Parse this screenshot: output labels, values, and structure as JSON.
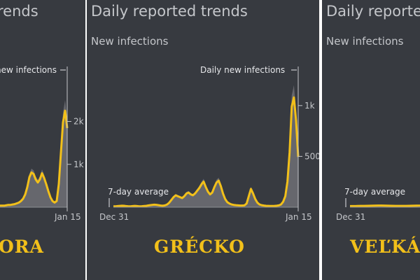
{
  "panels": [
    {
      "title": "rends",
      "subtitle": "",
      "country": "ORA",
      "daily_label": "new infections"
    },
    {
      "title": "Daily reported trends",
      "subtitle": "New infections",
      "country": "GRÉCKO",
      "daily_label": "Daily new infections"
    },
    {
      "title": "Daily reporte",
      "subtitle": "New infections",
      "country": "VEĽKÁ",
      "daily_label": ""
    }
  ],
  "colors": {
    "background": "#373a40",
    "accent": "#f2c01a",
    "area": "#6e7075",
    "text": "#c4c6ca"
  },
  "chart_data": [
    {
      "type": "area",
      "title": "rends",
      "x_labels": [
        "Jan 15"
      ],
      "y_ticks": [
        {
          "value": 1000,
          "label": "1k"
        },
        {
          "value": 2000,
          "label": "2k"
        }
      ],
      "ylim": [
        0,
        3200
      ],
      "annotations": [
        "new infections"
      ],
      "series": [
        {
          "name": "new infections",
          "values": [
            80,
            60,
            50,
            40,
            40,
            40,
            40,
            50,
            60,
            60,
            70,
            80,
            100,
            120,
            160,
            220,
            330,
            520,
            780,
            900,
            860,
            720,
            640,
            720,
            880,
            760,
            600,
            420,
            260,
            160,
            120,
            160,
            600,
            1400,
            2200,
            2500,
            2050
          ]
        }
      ]
    },
    {
      "type": "area",
      "title": "Daily reported trends",
      "subtitle": "New infections",
      "x_labels": [
        "Dec 31",
        "Jan 15"
      ],
      "y_ticks": [
        {
          "value": 500,
          "label": "500"
        },
        {
          "value": 1000,
          "label": "1k"
        }
      ],
      "ylim": [
        0,
        1350
      ],
      "annotations": [
        "Daily new infections",
        "7-day average"
      ],
      "series": [
        {
          "name": "Daily new infections",
          "values": [
            10,
            10,
            12,
            14,
            16,
            15,
            12,
            10,
            10,
            12,
            14,
            12,
            10,
            10,
            12,
            14,
            18,
            22,
            25,
            28,
            26,
            22,
            18,
            16,
            20,
            30,
            50,
            80,
            110,
            130,
            120,
            110,
            100,
            120,
            150,
            160,
            140,
            130,
            150,
            180,
            210,
            250,
            280,
            220,
            170,
            140,
            160,
            220,
            270,
            290,
            230,
            150,
            90,
            55,
            40,
            30,
            25,
            22,
            20,
            18,
            18,
            20,
            40,
            120,
            200,
            150,
            90,
            50,
            30,
            22,
            18,
            15,
            14,
            13,
            13,
            14,
            16,
            20,
            30,
            60,
            120,
            280,
            600,
            1100,
            1200,
            950,
            550
          ]
        }
      ]
    },
    {
      "type": "area",
      "title": "Daily reporte",
      "subtitle": "New infections",
      "x_labels": [
        "Dec 31"
      ],
      "y_ticks": [],
      "ylim": [
        0,
        1350
      ],
      "annotations": [
        "7-day average"
      ],
      "series": [
        {
          "name": "7-day average",
          "values": [
            12,
            12,
            13,
            14,
            14,
            15,
            16,
            17,
            18,
            18,
            17,
            16,
            15,
            14,
            14,
            14,
            14,
            15,
            16,
            17,
            18,
            20,
            24,
            30,
            40
          ]
        }
      ]
    }
  ]
}
